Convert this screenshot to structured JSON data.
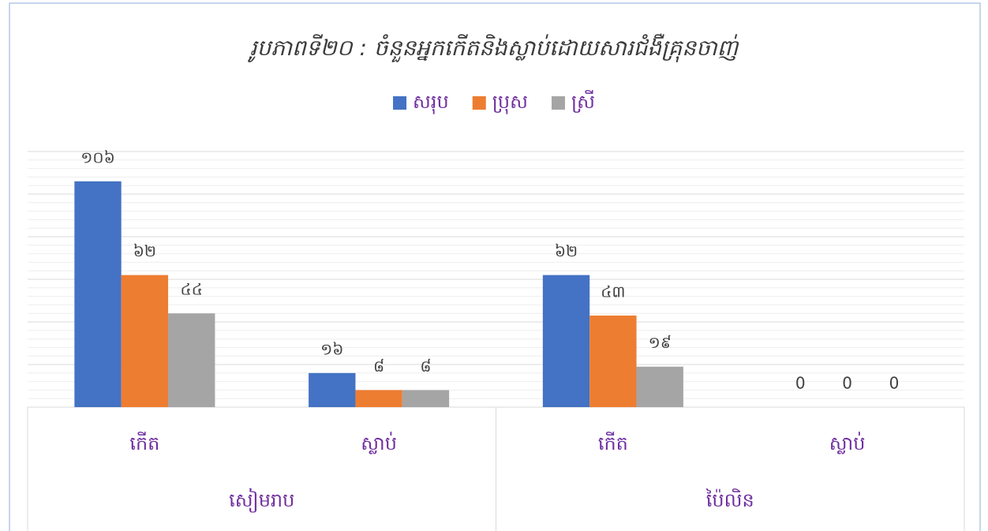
{
  "chart_data": {
    "type": "bar",
    "title": "រូបភាពទី២០ : ចំនួនអ្នកកើតនិងស្លាប់ដោយសារជំងឺគ្រុនចាញ់",
    "groups": [
      {
        "name": "សៀមរាប",
        "categories": [
          "កើត",
          "ស្លាប់"
        ]
      },
      {
        "name": "ប៉ៃលិន",
        "categories": [
          "កើត",
          "ស្លាប់"
        ]
      }
    ],
    "series": [
      {
        "name": "សរុប",
        "color": "#4472c4",
        "values": [
          106,
          16,
          62,
          0
        ],
        "value_labels": [
          "១០៦",
          "១៦",
          "៦២",
          "0"
        ]
      },
      {
        "name": "ប្រុស",
        "color": "#ed7d31",
        "values": [
          62,
          8,
          43,
          0
        ],
        "value_labels": [
          "៦២",
          "៨",
          "៤៣",
          "0"
        ]
      },
      {
        "name": "ស្រី",
        "color": "#a5a5a5",
        "values": [
          44,
          8,
          19,
          0
        ],
        "value_labels": [
          "៤៤",
          "៨",
          "១៩",
          "0"
        ]
      }
    ],
    "ylim": [
      0,
      120
    ],
    "yticks": [
      0,
      20,
      40,
      60,
      80,
      100,
      120
    ],
    "show_tick_labels": false,
    "grid": true,
    "minor_grid_divisions": 5,
    "legend": "top"
  }
}
